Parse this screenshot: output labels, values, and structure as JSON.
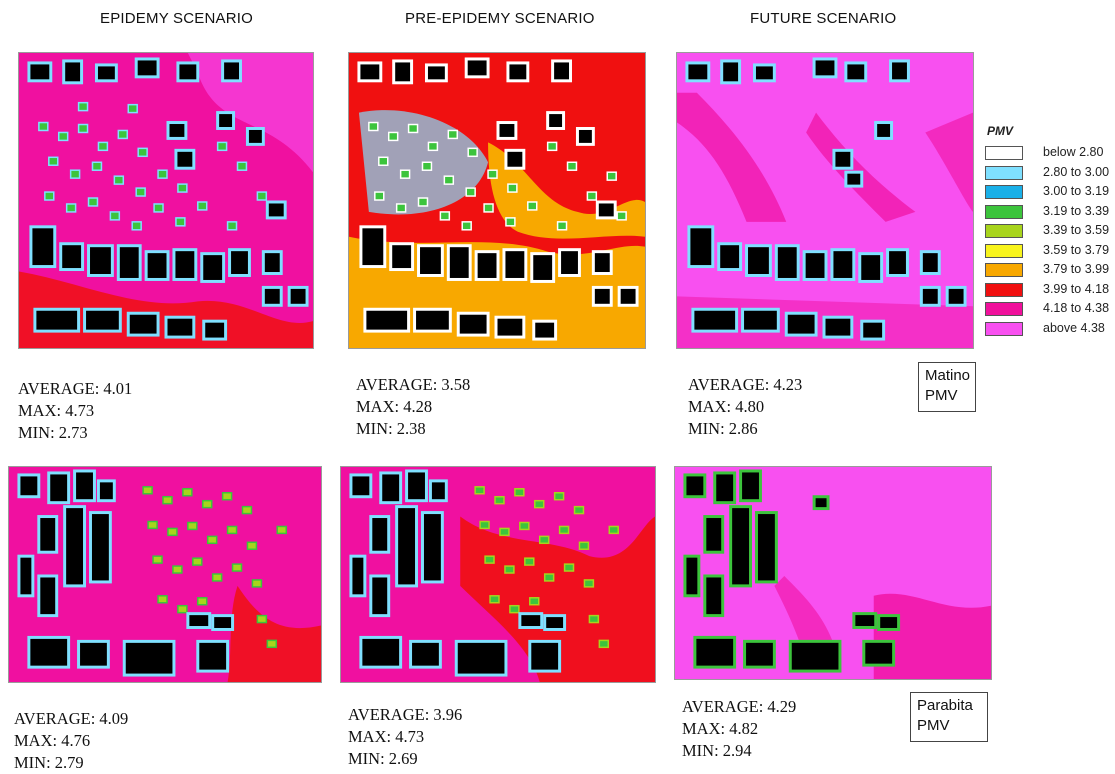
{
  "headers": {
    "epidemy": "EPIDEMY SCENARIO",
    "pre_epidemy": "PRE-EPIDEMY SCENARIO",
    "future": "FUTURE SCENARIO"
  },
  "legend": {
    "title": "PMV",
    "items": [
      {
        "label": "below 2.80",
        "color": "#ffffff"
      },
      {
        "label": "2.80 to 3.00",
        "color": "#7fe0ff"
      },
      {
        "label": "3.00 to 3.19",
        "color": "#1ab0e8"
      },
      {
        "label": "3.19 to 3.39",
        "color": "#3cc43c"
      },
      {
        "label": "3.39 to 3.59",
        "color": "#a8d41c"
      },
      {
        "label": "3.59 to 3.79",
        "color": "#f8f41c"
      },
      {
        "label": "3.79 to 3.99",
        "color": "#f8a800"
      },
      {
        "label": "3.99 to 4.18",
        "color": "#f01010"
      },
      {
        "label": "4.18 to 4.38",
        "color": "#f0109c"
      },
      {
        "label": "above 4.38",
        "color": "#f850f0"
      }
    ]
  },
  "sites": {
    "matino": [
      "Matino",
      "PMV"
    ],
    "parabita": [
      "Parabita",
      "PMV"
    ]
  },
  "stats": {
    "matino_epidemy": {
      "average": "AVERAGE: 4.01",
      "max": "MAX: 4.73",
      "min": "MIN: 2.73"
    },
    "matino_pre": {
      "average": "AVERAGE: 3.58",
      "max": "MAX: 4.28",
      "min": "MIN: 2.38"
    },
    "matino_future": {
      "average": "AVERAGE: 4.23",
      "max": "MAX: 4.80",
      "min": "MIN: 2.86"
    },
    "parabita_epidemy": {
      "average": "AVERAGE: 4.09",
      "max": "MAX: 4.76",
      "min": "MIN: 2.79"
    },
    "parabita_pre": {
      "average": "AVERAGE: 3.96",
      "max": "MAX: 4.73",
      "min": "MIN: 2.69"
    },
    "parabita_future": {
      "average": "AVERAGE: 4.29",
      "max": "MAX: 4.82",
      "min": "MIN: 2.94"
    }
  },
  "colors": {
    "building": "#000000",
    "magenta": "#f010a0",
    "light_magenta": "#f850f0",
    "red": "#f01010",
    "orange": "#f8a800",
    "cyan": "#7fe0ff",
    "green": "#3cc43c"
  }
}
